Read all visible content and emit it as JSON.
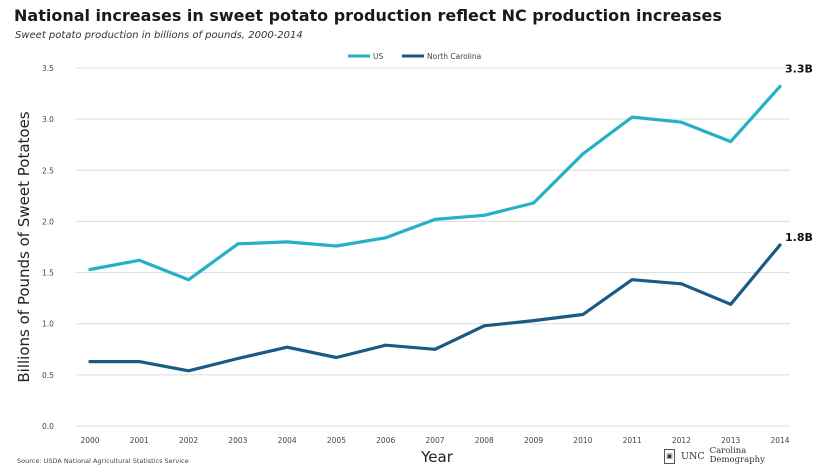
{
  "header": {
    "title": "National increases in sweet potato production reflect NC production increases",
    "subtitle": "Sweet potato production in billions of pounds, 2000-2014"
  },
  "footer": {
    "source": "Source: USDA National Agricultural Statistics Service",
    "logo_unc": "UNC",
    "logo_line1": "Carolina",
    "logo_line2": "Demography"
  },
  "colors": {
    "us": "#25b0c6",
    "nc": "#1a5a85"
  },
  "chart_data": {
    "type": "line",
    "title": "National increases in sweet potato production reflect NC production increases",
    "subtitle": "Sweet potato production in billions of pounds, 2000-2014",
    "xlabel": "Year",
    "ylabel": "Billions of Pounds of Sweet Potatoes",
    "categories": [
      "2000",
      "2001",
      "2002",
      "2003",
      "2004",
      "2005",
      "2006",
      "2007",
      "2008",
      "2009",
      "2010",
      "2011",
      "2012",
      "2013",
      "2014"
    ],
    "yticks": [
      "0.0",
      "0.5",
      "1.0",
      "1.5",
      "2.0",
      "2.5",
      "3.0",
      "3.5"
    ],
    "ylim": [
      0,
      3.5
    ],
    "grid": true,
    "legend_position": "top-center",
    "series": [
      {
        "name": "US",
        "values": [
          1.53,
          1.62,
          1.43,
          1.78,
          1.8,
          1.76,
          1.84,
          2.02,
          2.06,
          2.18,
          2.66,
          3.02,
          2.97,
          2.78,
          3.32
        ],
        "end_label": "3.3B"
      },
      {
        "name": "North Carolina",
        "values": [
          0.63,
          0.63,
          0.54,
          0.66,
          0.77,
          0.67,
          0.79,
          0.75,
          0.98,
          1.03,
          1.09,
          1.43,
          1.39,
          1.19,
          1.77
        ],
        "end_label": "1.8B"
      }
    ]
  }
}
